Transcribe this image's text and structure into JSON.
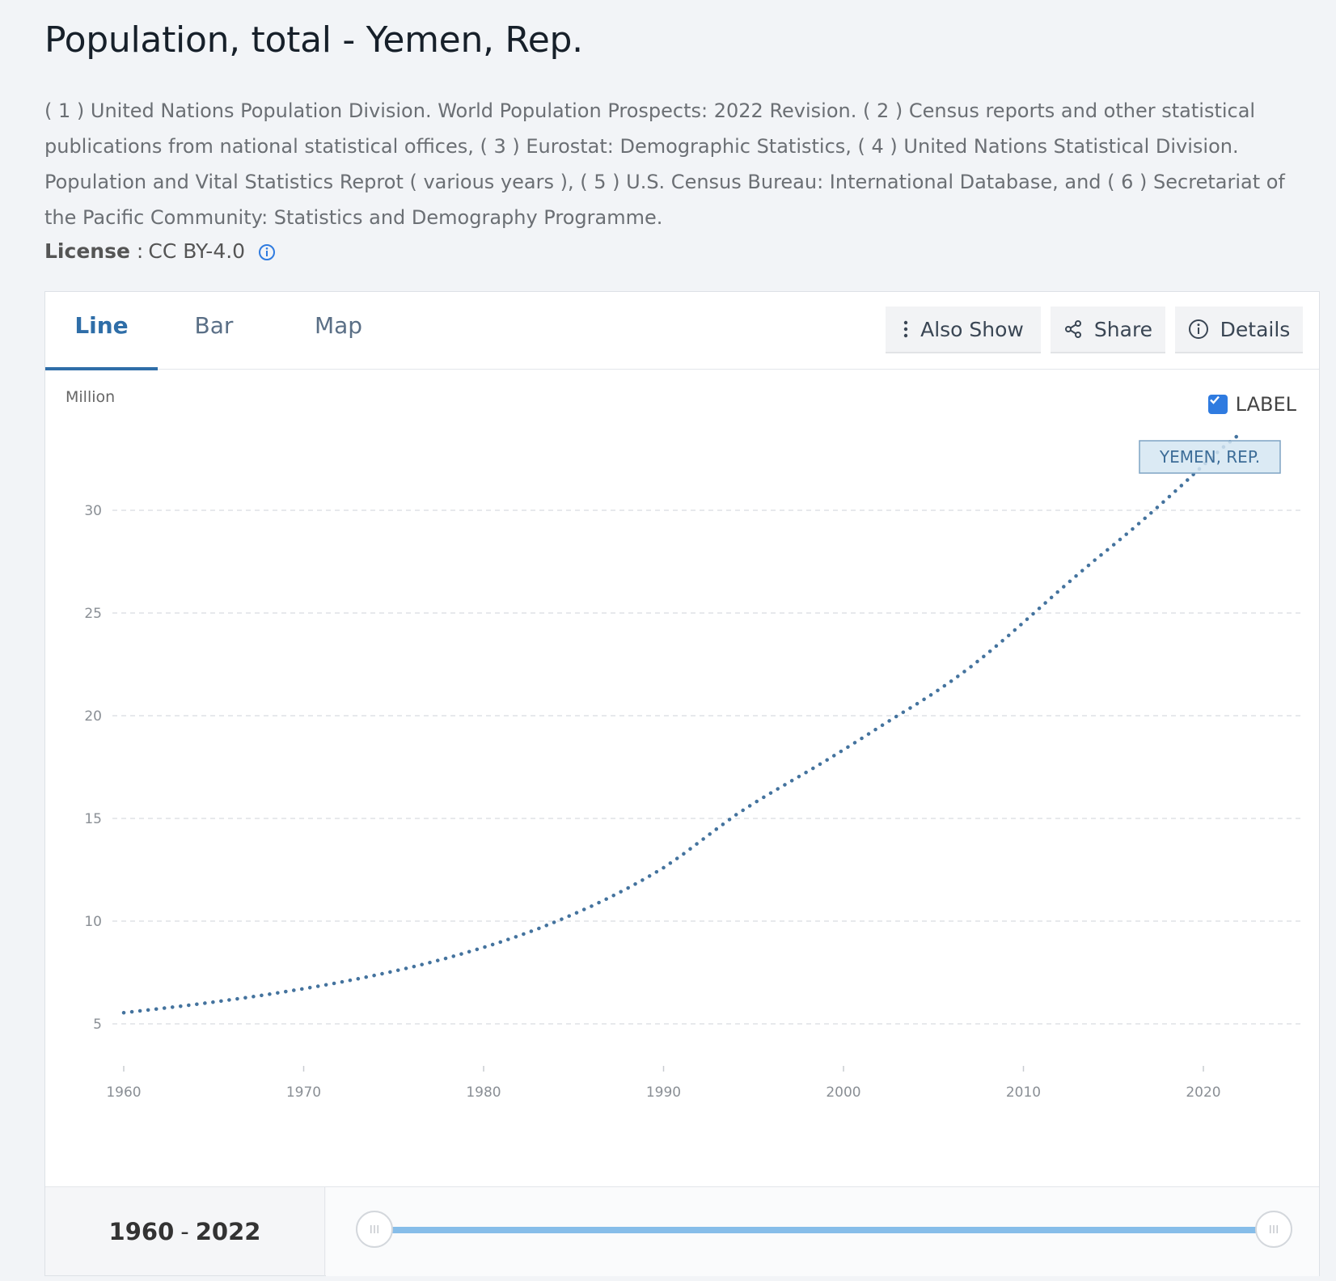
{
  "title": "Population, total - Yemen, Rep.",
  "sources": "( 1 ) United Nations Population Division. World Population Prospects: 2022 Revision. ( 2 ) Census reports and other statistical publications from national statistical offices, ( 3 ) Eurostat: Demographic Statistics, ( 4 ) United Nations Statistical Division. Population and Vital Statistics Reprot ( various years ), ( 5 ) U.S. Census Bureau: International Database, and ( 6 ) Secretariat of the Pacific Community: Statistics and Demography Programme.",
  "license": {
    "label": "License",
    "separator": ":",
    "value": "CC BY-4.0"
  },
  "tabs": [
    {
      "label": "Line",
      "active": true
    },
    {
      "label": "Bar",
      "active": false
    },
    {
      "label": "Map",
      "active": false
    }
  ],
  "toolbar": {
    "also_show": "Also Show",
    "share": "Share",
    "details": "Details"
  },
  "label_toggle": {
    "text": "LABEL",
    "checked": true
  },
  "range": {
    "start": "1960",
    "separator": "-",
    "end": "2022"
  },
  "colors": {
    "line": "#44739e",
    "accent": "#2f6ea8",
    "label_bg": "#d5e6f2"
  },
  "chart_data": {
    "type": "line",
    "ylabel": "Million",
    "yticks": [
      5,
      10,
      15,
      20,
      25,
      30
    ],
    "xticks": [
      1960,
      1970,
      1980,
      1990,
      2000,
      2010,
      2020
    ],
    "xlim": [
      1960,
      2022
    ],
    "grid": true,
    "series": [
      {
        "name": "YEMEN, REP.",
        "x": [
          1960,
          1961,
          1962,
          1963,
          1964,
          1965,
          1966,
          1967,
          1968,
          1969,
          1970,
          1971,
          1972,
          1973,
          1974,
          1975,
          1976,
          1977,
          1978,
          1979,
          1980,
          1981,
          1982,
          1983,
          1984,
          1985,
          1986,
          1987,
          1988,
          1989,
          1990,
          1991,
          1992,
          1993,
          1994,
          1995,
          1996,
          1997,
          1998,
          1999,
          2000,
          2001,
          2002,
          2003,
          2004,
          2005,
          2006,
          2007,
          2008,
          2009,
          2010,
          2011,
          2012,
          2013,
          2014,
          2015,
          2016,
          2017,
          2018,
          2019,
          2020,
          2021,
          2022
        ],
        "values": [
          5.54,
          5.64,
          5.74,
          5.84,
          5.95,
          6.06,
          6.18,
          6.3,
          6.43,
          6.57,
          6.71,
          6.86,
          7.02,
          7.19,
          7.37,
          7.56,
          7.76,
          7.98,
          8.21,
          8.46,
          8.72,
          9.0,
          9.3,
          9.62,
          9.97,
          10.34,
          10.73,
          11.15,
          11.6,
          12.08,
          12.6,
          13.2,
          13.86,
          14.52,
          15.16,
          15.73,
          16.26,
          16.77,
          17.28,
          17.8,
          18.34,
          18.89,
          19.45,
          20.0,
          20.53,
          21.09,
          21.69,
          22.33,
          23.03,
          23.77,
          24.54,
          25.32,
          26.1,
          26.86,
          27.6,
          28.31,
          29.04,
          29.8,
          30.58,
          31.38,
          32.2,
          33.0,
          33.7
        ]
      }
    ]
  }
}
